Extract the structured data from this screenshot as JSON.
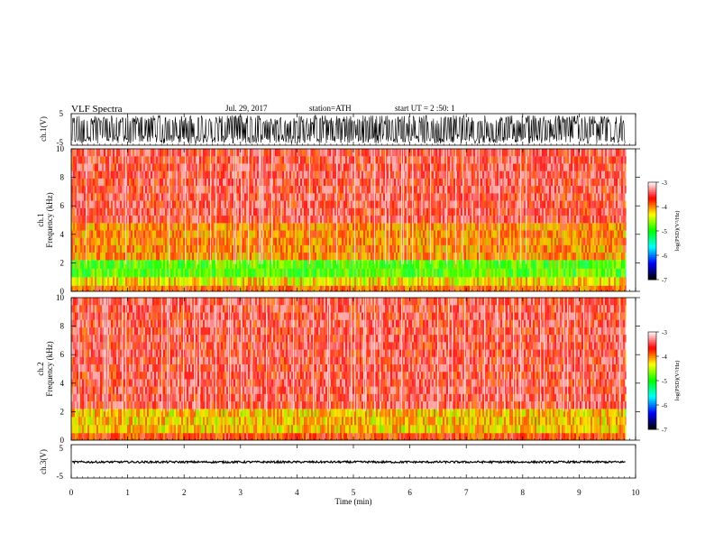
{
  "header": {
    "title": "VLF Spectra",
    "date": "Jul. 29, 2017",
    "station": "station=ATH",
    "start": "start UT =  2 :50: 1"
  },
  "colorbar": {
    "label": "log(PSD)(V²/Hz)",
    "ticks": [
      "-3",
      "-4",
      "-5",
      "-6",
      "-7"
    ],
    "range": [
      -7,
      -3
    ],
    "colors": [
      "#000000",
      "#0000ff",
      "#00ffff",
      "#00ff00",
      "#ffff00",
      "#ff0000",
      "#ffffff"
    ]
  },
  "chart_data": [
    {
      "type": "line",
      "panel": "ch1-waveform",
      "ylabel": "ch.1(V)",
      "ylim": [
        -5,
        5
      ],
      "ytick_labels": [
        "5",
        "-5"
      ],
      "xlim": [
        0,
        10
      ],
      "x_end": 9.82,
      "amplitude_envelope": [
        -4.5,
        4.5
      ],
      "description_style": "dense oscillating signal"
    },
    {
      "type": "heatmap",
      "panel": "ch1-spectrogram",
      "ylabel": "ch.1\nFrequency (kHz)",
      "ylabel_lines": [
        "ch.1",
        "Frequency (kHz)"
      ],
      "ylim": [
        0,
        10
      ],
      "ytick_labels": [
        "10",
        "8",
        "6",
        "4",
        "2",
        "0"
      ],
      "xlim": [
        0,
        10
      ],
      "x_end": 9.82,
      "bands": [
        {
          "f_from": 0,
          "f_to": 0.4,
          "log_psd": -3.9
        },
        {
          "f_from": 0.4,
          "f_to": 1.0,
          "log_psd": -4.3
        },
        {
          "f_from": 1.0,
          "f_to": 2.2,
          "log_psd": -4.8
        },
        {
          "f_from": 2.2,
          "f_to": 4.8,
          "log_psd": -4.0
        },
        {
          "f_from": 4.8,
          "f_to": 10,
          "log_psd": -3.5
        }
      ]
    },
    {
      "type": "heatmap",
      "panel": "ch2-spectrogram",
      "ylabel": "ch.2\nFrequency (kHz)",
      "ylabel_lines": [
        "ch.2",
        "Frequency (kHz)"
      ],
      "ylim": [
        0,
        10
      ],
      "ytick_labels": [
        "10",
        "8",
        "6",
        "4",
        "2",
        "0"
      ],
      "xlim": [
        0,
        10
      ],
      "x_end": 9.82,
      "bands": [
        {
          "f_from": 0,
          "f_to": 0.5,
          "log_psd": -3.8
        },
        {
          "f_from": 0.5,
          "f_to": 2.2,
          "log_psd": -4.2
        },
        {
          "f_from": 2.2,
          "f_to": 10,
          "log_psd": -3.5
        }
      ]
    },
    {
      "type": "line",
      "panel": "ch3-waveform",
      "ylabel": "ch.3(V)",
      "ylim": [
        -5,
        5
      ],
      "ytick_labels": [
        "5",
        "-5"
      ],
      "xlim": [
        0,
        10
      ],
      "x_end": 9.82,
      "baseline": 0,
      "amplitude_envelope": [
        -0.3,
        0.3
      ],
      "xlabel": "Time (min)",
      "xtick_labels": [
        "0",
        "1",
        "2",
        "3",
        "4",
        "5",
        "6",
        "7",
        "8",
        "9",
        "10"
      ]
    }
  ]
}
